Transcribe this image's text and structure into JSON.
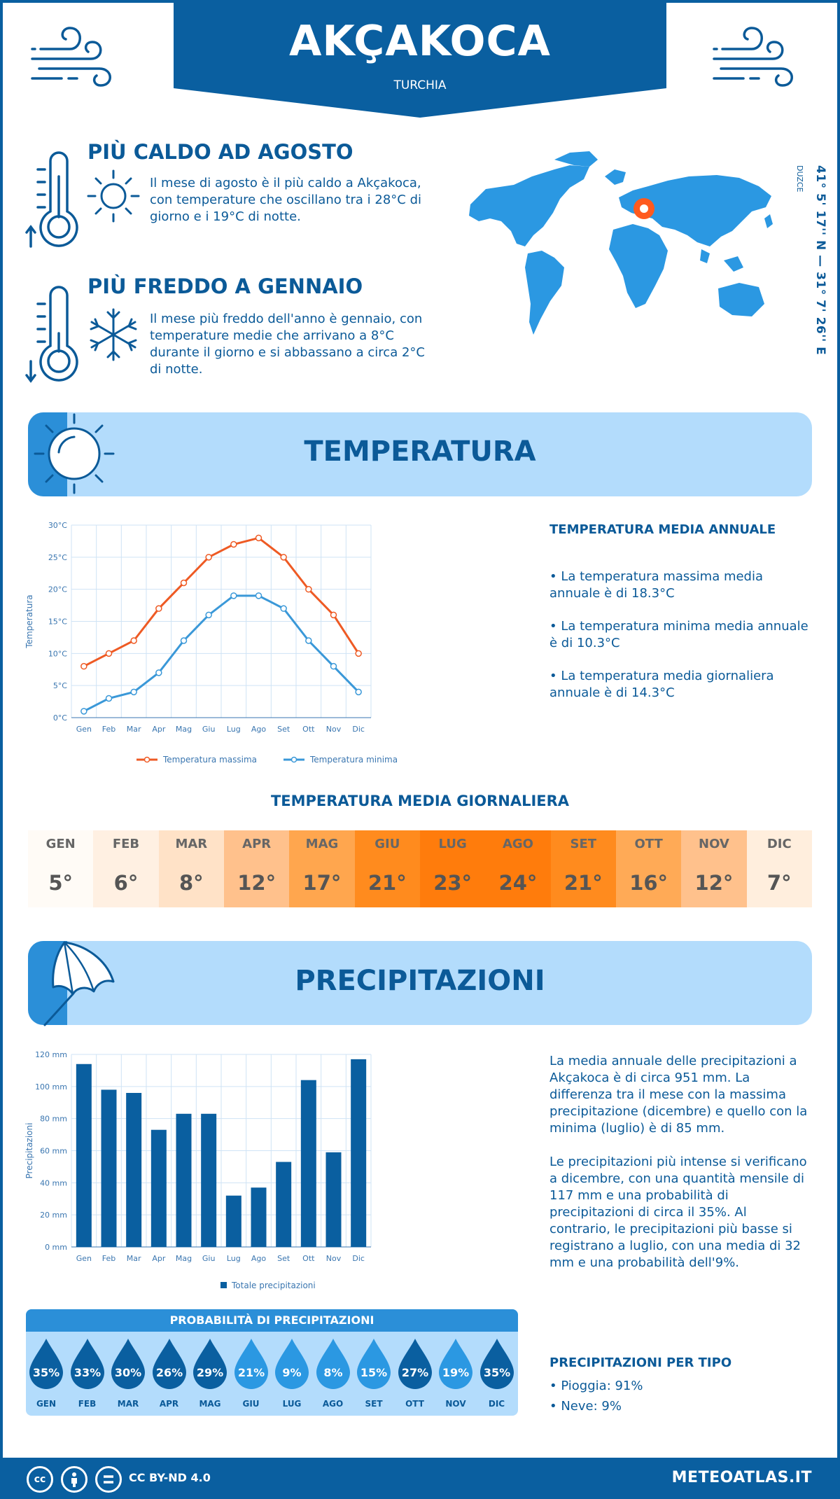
{
  "header": {
    "city": "AKÇAKOCA",
    "country": "TURCHIA"
  },
  "hot": {
    "title": "PIÙ CALDO AD AGOSTO",
    "text": "Il mese di agosto è il più caldo a Akçakoca, con temperature che oscillano tra i 28°C di giorno e i 19°C di notte."
  },
  "cold": {
    "title": "PIÙ FREDDO A GENNAIO",
    "text": "Il mese più freddo dell'anno è gennaio, con temperature medie che arrivano a 8°C durante il giorno e si abbassano a circa 2°C di notte."
  },
  "location": {
    "coords": "41° 5' 17'' N — 31° 7' 26'' E",
    "region": "DUZCE"
  },
  "temperature_section": {
    "title": "TEMPERATURA",
    "annual_title": "TEMPERATURA MEDIA ANNUALE",
    "bullets": [
      "• La temperatura massima media annuale è di 18.3°C",
      "• La temperatura minima media annuale è di 10.3°C",
      "• La temperatura media giornaliera annuale è di 14.3°C"
    ]
  },
  "daily": {
    "title": "TEMPERATURA MEDIA GIORNALIERA",
    "months": [
      "GEN",
      "FEB",
      "MAR",
      "APR",
      "MAG",
      "GIU",
      "LUG",
      "AGO",
      "SET",
      "OTT",
      "NOV",
      "DIC"
    ],
    "values": [
      "5°",
      "6°",
      "8°",
      "12°",
      "17°",
      "21°",
      "23°",
      "24°",
      "21°",
      "16°",
      "12°",
      "7°"
    ],
    "colors": [
      "#fffbf6",
      "#fff0e2",
      "#ffe2c7",
      "#ffc18c",
      "#ffa64e",
      "#ff8b1e",
      "#ff7c0c",
      "#ff7c0c",
      "#ff8b1e",
      "#ffaa56",
      "#ffc18c",
      "#ffeedd"
    ]
  },
  "precip_section": {
    "title": "PRECIPITAZIONI",
    "text1": "La media annuale delle precipitazioni a Akçakoca è di circa 951 mm. La differenza tra il mese con la massima precipitazione (dicembre) e quello con la minima (luglio) è di 85 mm.",
    "text2": "Le precipitazioni più intense si verificano a dicembre, con una quantità mensile di 117 mm e una probabilità di precipitazioni di circa il 35%. Al contrario, le precipitazioni più basse si registrano a luglio, con una media di 32 mm e una probabilità dell'9%.",
    "prob_title": "PROBABILITÀ DI PRECIPITAZIONI",
    "prob_months": [
      "GEN",
      "FEB",
      "MAR",
      "APR",
      "MAG",
      "GIU",
      "LUG",
      "AGO",
      "SET",
      "OTT",
      "NOV",
      "DIC"
    ],
    "prob_values": [
      "35%",
      "33%",
      "30%",
      "26%",
      "29%",
      "21%",
      "9%",
      "8%",
      "15%",
      "27%",
      "19%",
      "35%"
    ],
    "type_title": "PRECIPITAZIONI PER TIPO",
    "type_rain": "• Pioggia: 91%",
    "type_snow": "• Neve: 9%"
  },
  "footer": {
    "license": "CC BY-ND 4.0",
    "brand": "METEOATLAS.IT"
  },
  "chart_data": [
    {
      "type": "line",
      "categories": [
        "Gen",
        "Feb",
        "Mar",
        "Apr",
        "Mag",
        "Giu",
        "Lug",
        "Ago",
        "Set",
        "Ott",
        "Nov",
        "Dic"
      ],
      "series": [
        {
          "name": "Temperatura massima",
          "color": "#ee5a24",
          "values": [
            8,
            10,
            12,
            17,
            21,
            25,
            27,
            28,
            25,
            20,
            16,
            10
          ]
        },
        {
          "name": "Temperatura minima",
          "color": "#3a98d8",
          "values": [
            1,
            3,
            4,
            7,
            12,
            16,
            19,
            19,
            17,
            12,
            8,
            4
          ]
        }
      ],
      "ylabel": "Temperatura",
      "ylim": [
        0,
        30
      ],
      "yticks": [
        "0°C",
        "5°C",
        "10°C",
        "15°C",
        "20°C",
        "25°C",
        "30°C"
      ],
      "grid": true,
      "legend": "bottom"
    },
    {
      "type": "bar",
      "categories": [
        "Gen",
        "Feb",
        "Mar",
        "Apr",
        "Mag",
        "Giu",
        "Lug",
        "Ago",
        "Set",
        "Ott",
        "Nov",
        "Dic"
      ],
      "series": [
        {
          "name": "Totale precipitazioni",
          "color": "#0a5fa0",
          "values": [
            114,
            98,
            96,
            73,
            83,
            83,
            32,
            37,
            53,
            104,
            59,
            117
          ]
        }
      ],
      "ylabel": "Precipitazioni",
      "ylim": [
        0,
        120
      ],
      "yticks": [
        "0 mm",
        "20 mm",
        "40 mm",
        "60 mm",
        "80 mm",
        "100 mm",
        "120 mm"
      ],
      "grid": true,
      "legend": "bottom"
    }
  ]
}
